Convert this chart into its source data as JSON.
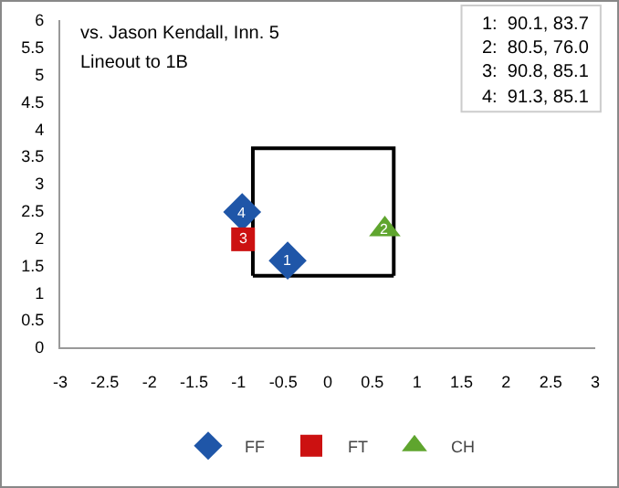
{
  "chart_data": {
    "type": "scatter",
    "title": "vs. Jason Kendall, Inn. 5",
    "subtitle": "Lineout to 1B",
    "xlim": [
      -3,
      3
    ],
    "xticks": [
      -3,
      -2.5,
      -2,
      -1.5,
      -1,
      -0.5,
      0,
      0.5,
      1,
      1.5,
      2,
      2.5,
      3
    ],
    "ylim": [
      0,
      6
    ],
    "yticks": [
      0,
      0.5,
      1,
      1.5,
      2,
      2.5,
      3,
      3.5,
      4,
      4.5,
      5,
      5.5,
      6
    ],
    "grid": false,
    "legend": "bottom",
    "series": [
      {
        "type": "line",
        "color": "#000000",
        "marker": "none",
        "x": [
          -0.84,
          -0.84,
          0.74,
          0.74
        ],
        "values": [
          1.31,
          3.65,
          3.65,
          1.31
        ]
      },
      {
        "type": "line",
        "color": "#000000",
        "marker": "none",
        "x": [
          -0.84,
          0.74
        ],
        "values": [
          1.31,
          1.31
        ]
      },
      {
        "name": "FF",
        "color": "#1f56a8",
        "marker": "diamond",
        "x": [
          -0.45,
          -0.96
        ],
        "values": [
          1.59,
          2.48
        ]
      },
      {
        "name": "FT",
        "color": "#cc1111",
        "marker": "square",
        "x": [
          -0.95
        ],
        "values": [
          1.98
        ]
      },
      {
        "name": "CH",
        "color": "#5fa52e",
        "marker": "triangle",
        "x": [
          0.64
        ],
        "values": [
          2.16
        ]
      }
    ],
    "annotations": [
      {
        "text": "1",
        "x": -0.45,
        "y": 1.59
      },
      {
        "text": "2",
        "x": 0.64,
        "y": 2.16
      },
      {
        "text": "3",
        "x": -0.95,
        "y": 1.98
      },
      {
        "text": "4",
        "x": -0.96,
        "y": 2.48
      },
      "1:  90.1, 83.7",
      "2:  80.5, 76.0",
      "3:  90.8, 85.1",
      "4:  91.3, 85.1"
    ]
  }
}
